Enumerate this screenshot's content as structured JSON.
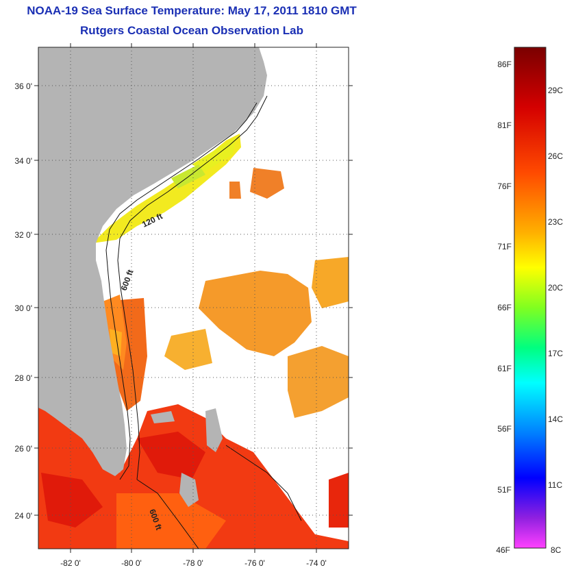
{
  "title": "NOAA-19 Sea Surface Temperature:  May 17, 2011 1810 GMT",
  "subtitle": "Rutgers Coastal Ocean Observation Lab",
  "map": {
    "lat_labels": [
      "36 0'",
      "34 0'",
      "32 0'",
      "30 0'",
      "28 0'",
      "26 0'",
      "24 0'"
    ],
    "lon_labels": [
      "-82 0'",
      "-80 0'",
      "-78 0'",
      "-76 0'",
      "-74 0'"
    ],
    "lat_range": [
      23,
      37
    ],
    "lon_range": [
      -83,
      -73
    ],
    "isobath_labels": [
      "120 ft",
      "600 ft",
      "600 ft"
    ],
    "land_color": "#b4b4b4"
  },
  "colorbar": {
    "f_labels": [
      "86F",
      "81F",
      "76F",
      "71F",
      "66F",
      "61F",
      "56F",
      "51F",
      "46F"
    ],
    "c_labels": [
      "29C",
      "26C",
      "23C",
      "20C",
      "17C",
      "14C",
      "11C",
      "8C"
    ],
    "range_f": [
      46,
      88
    ]
  }
}
